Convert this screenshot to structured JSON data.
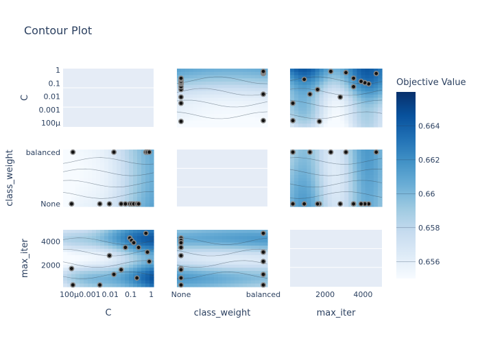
{
  "chart_data": {
    "type": "contour",
    "title": "Contour Plot",
    "colorbar": {
      "title": "Objective Value",
      "min": 0.655,
      "max": 0.666,
      "ticks": [
        "0.656",
        "0.658",
        "0.66",
        "0.662",
        "0.664"
      ],
      "tick_values": [
        0.656,
        0.658,
        0.66,
        0.662,
        0.664
      ],
      "colors": [
        "#f7fbff",
        "#deebf7",
        "#c6dbef",
        "#9ecae1",
        "#6baed6",
        "#4292c6",
        "#2171b5",
        "#08519c",
        "#08306b"
      ]
    },
    "params": {
      "C": {
        "label": "C",
        "scale": "log",
        "range": [
          5e-05,
          1.3
        ],
        "ticks_row": [
          "1",
          "0.1",
          "0.01",
          "0.001",
          "100μ"
        ],
        "ticks_row_values": [
          1,
          0.1,
          0.01,
          0.001,
          0.0001
        ],
        "ticks_col": [
          "100μ",
          "0.001",
          "0.01",
          "0.1",
          "1"
        ],
        "ticks_col_values": [
          0.0001,
          0.001,
          0.01,
          0.1,
          1
        ]
      },
      "class_weight": {
        "label": "class_weight",
        "scale": "category",
        "categories": [
          "None",
          "balanced"
        ],
        "range": [
          -0.05,
          1.05
        ]
      },
      "max_iter": {
        "label": "max_iter",
        "scale": "linear",
        "range": [
          150,
          5000
        ],
        "ticks_row": [
          "4000",
          "2000"
        ],
        "ticks_row_values": [
          4000,
          2000
        ],
        "ticks_col": [
          "2000",
          "4000"
        ],
        "ticks_col_values": [
          2000,
          4000
        ]
      }
    },
    "trials": [
      {
        "C": 0.00013,
        "class_weight": 0,
        "max_iter": 1700
      },
      {
        "C": 0.00015,
        "class_weight": 1,
        "max_iter": 300
      },
      {
        "C": 0.0031,
        "class_weight": 0,
        "max_iter": 300
      },
      {
        "C": 0.0091,
        "class_weight": 0,
        "max_iter": 2800
      },
      {
        "C": 0.015,
        "class_weight": 1,
        "max_iter": 1200
      },
      {
        "C": 0.034,
        "class_weight": 0,
        "max_iter": 1600
      },
      {
        "C": 0.055,
        "class_weight": 0,
        "max_iter": 3500
      },
      {
        "C": 0.09,
        "class_weight": 0,
        "max_iter": 4300
      },
      {
        "C": 0.11,
        "class_weight": 0,
        "max_iter": 4100
      },
      {
        "C": 0.14,
        "class_weight": 0,
        "max_iter": 3900
      },
      {
        "C": 0.2,
        "class_weight": 0,
        "max_iter": 900
      },
      {
        "C": 0.24,
        "class_weight": 0,
        "max_iter": 3500
      },
      {
        "C": 0.55,
        "class_weight": 1,
        "max_iter": 4700
      },
      {
        "C": 0.65,
        "class_weight": 1,
        "max_iter": 3100
      },
      {
        "C": 0.8,
        "class_weight": 1,
        "max_iter": 2300
      }
    ]
  }
}
